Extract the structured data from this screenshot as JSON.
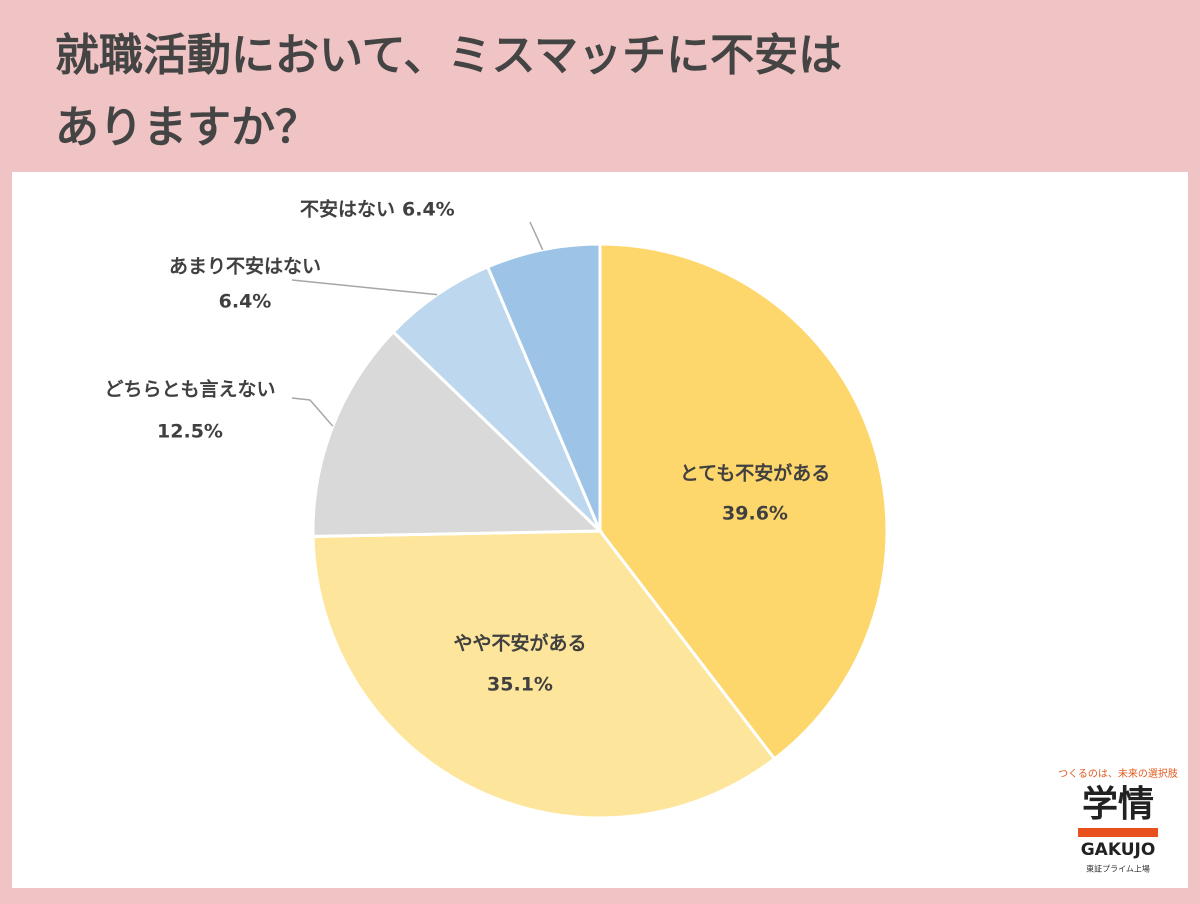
{
  "chart_data": {
    "type": "pie",
    "title": [
      "就職活動において、ミスマッチに不安は",
      "ありますか？"
    ],
    "categories": [
      "とても不安がある",
      "やや不安がある",
      "どちらとも言えない",
      "あまり不安はない",
      "不安はない"
    ],
    "values": [
      39.6,
      35.1,
      12.5,
      6.4,
      6.4
    ],
    "value_labels": [
      "39.6%",
      "35.1%",
      "12.5%",
      "6.4%",
      "6.4%"
    ],
    "colors": [
      "#fdd76b",
      "#fde59c",
      "#d9d9d9",
      "#bdd7ee",
      "#9dc3e6"
    ]
  },
  "logo": {
    "tagline": "つくるのは、未来の選択肢",
    "name": "学情",
    "roman": "GAKUJO",
    "note": "東証プライム上場"
  }
}
